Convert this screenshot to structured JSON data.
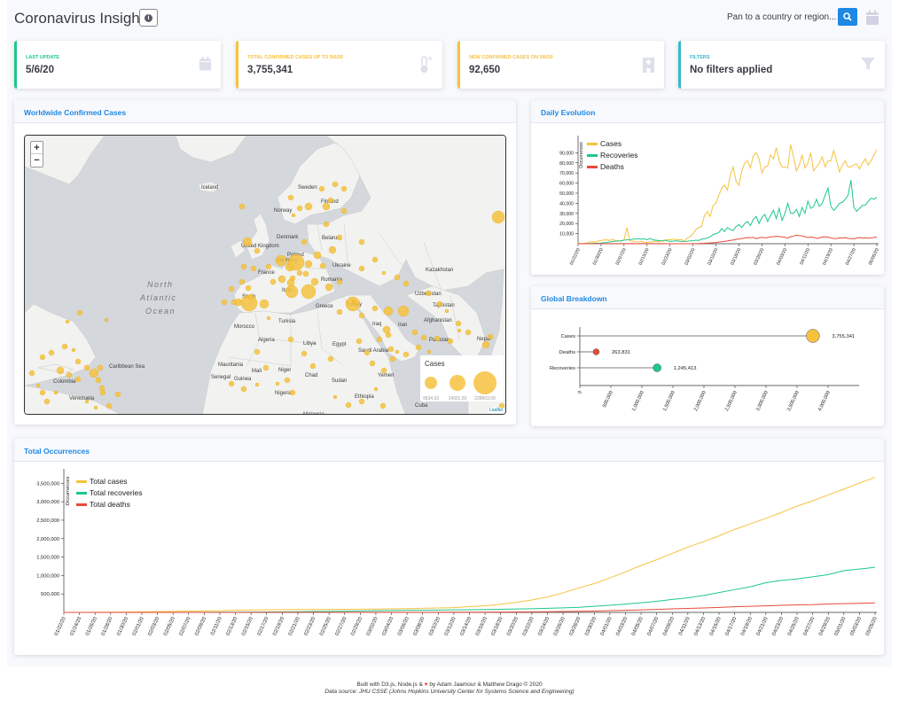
{
  "app": {
    "title": "Coronavirus Insights"
  },
  "search": {
    "placeholder": "Pan to a country or region..."
  },
  "kpis": [
    {
      "label": "LAST UPDATE",
      "value": "5/6/20",
      "color": "#1cc88a",
      "icon": "calendar-icon"
    },
    {
      "label": "TOTAL CONFIRMED CASES UP TO 5/6/20",
      "value": "3,755,341",
      "color": "#f6c23e",
      "icon": "thermometer-icon"
    },
    {
      "label": "NEW CONFIRMED CASES ON 5/6/20",
      "value": "92,650",
      "color": "#f6c23e",
      "icon": "hospital-icon"
    },
    {
      "label": "FILTERS",
      "value": "No filters applied",
      "color": "#36b9cc",
      "icon": "filter-icon"
    }
  ],
  "map_panel": {
    "title": "Worldwide Confirmed Cases",
    "zoom_in": "+",
    "zoom_out": "−",
    "legend_title": "Cases",
    "legend_values": [
      "9534.33",
      "14301.50",
      "228603.00"
    ],
    "attribution": "Leaflet",
    "labels": [
      "Iceland",
      "Sweden",
      "Finland",
      "Norway",
      "United Kingdom",
      "Denmark",
      "Belarus",
      "France",
      "Germany",
      "Poland",
      "Ukraine",
      "Kazakhstan",
      "Spain",
      "Italy",
      "Romania",
      "Uzbekistan",
      "Turkey",
      "Greece",
      "Tajikistan",
      "Tunisia",
      "Afghanistan",
      "Morocco",
      "Iraq",
      "Iran",
      "Algeria",
      "Libya",
      "Egypt",
      "Pakistan",
      "Nepal",
      "Saudi Arabia",
      "Mauritania",
      "Mali",
      "Niger",
      "Chad",
      "Sudan",
      "Yemen",
      "Oman",
      "Senegal",
      "Guinea",
      "Nigeria",
      "Ethiopia",
      "Venezuela",
      "Colombia",
      "Caribbean Sea",
      "Cuba",
      "Malaysia",
      "Democratic",
      "North Atlantic Ocean"
    ]
  },
  "daily_panel": {
    "title": "Daily Evolution",
    "ylabel": "Occurrences"
  },
  "breakdown_panel": {
    "title": "Global Breakdown"
  },
  "total_panel": {
    "title": "Total Occurrences",
    "ylabel": "Occurrences"
  },
  "footer": {
    "line1_before": "Built with D3.js, Node.js &",
    "line1_after": "by Adam Jaamour & Matthew Drago © 2020",
    "line2": "Data source: JHU CSSE (Johns Hopkins University Center for Systems Science and Engineering)"
  },
  "chart_data": [
    {
      "type": "line",
      "title": "Daily Evolution",
      "ylabel": "Occurrences",
      "ylim": [
        0,
        100000
      ],
      "yticks": [
        "10,000",
        "20,000",
        "30,000",
        "40,000",
        "50,000",
        "60,000",
        "70,000",
        "80,000",
        "90,000"
      ],
      "xticks": [
        "01/22/20",
        "01/30/20",
        "02/07/20",
        "02/15/20",
        "02/23/20",
        "03/02/20",
        "03/10/20",
        "03/18/20",
        "03/26/20",
        "04/03/20",
        "04/11/20",
        "04/19/20",
        "04/27/20",
        "05/05/20"
      ],
      "legend": "top-left",
      "series": [
        {
          "name": "Cases",
          "color": "#f6c23e",
          "values": [
            500,
            100,
            300,
            700,
            1800,
            2000,
            1700,
            2700,
            3200,
            3700,
            3800,
            3300,
            4100,
            3200,
            2700,
            2500,
            3700,
            16000,
            3000,
            2600,
            2000,
            1800,
            2500,
            1500,
            1100,
            1700,
            2000,
            2600,
            2000,
            2500,
            2800,
            4000,
            3800,
            4500,
            4300,
            4000,
            4200,
            2400,
            5500,
            7000,
            9800,
            14000,
            16000,
            17000,
            28000,
            32000,
            27000,
            38000,
            40000,
            48000,
            55000,
            58000,
            53000,
            68000,
            76000,
            62000,
            58000,
            72000,
            80000,
            82000,
            75000,
            87000,
            90000,
            84000,
            70000,
            76000,
            77000,
            88000,
            84000,
            95000,
            82000,
            76000,
            76000,
            75000,
            98000,
            86000,
            72000,
            78000,
            88000,
            75000,
            80000,
            90000,
            72000,
            76000,
            80000,
            86000,
            76000,
            82000,
            82000,
            92000,
            82000,
            71000,
            78000,
            82000,
            76000,
            76000,
            78000,
            79000,
            74000,
            80000,
            84000,
            78000,
            82000,
            88000,
            93000
          ]
        },
        {
          "name": "Recoveries",
          "color": "#1cc88a",
          "values": [
            0,
            0,
            0,
            100,
            200,
            300,
            400,
            500,
            700,
            1000,
            1200,
            1700,
            2200,
            2500,
            2800,
            3000,
            3500,
            3800,
            4000,
            4500,
            4600,
            5000,
            4500,
            4800,
            4000,
            5200,
            3800,
            3500,
            3200,
            2800,
            3500,
            2900,
            2300,
            2500,
            2800,
            2600,
            2200,
            2300,
            2400,
            2900,
            2800,
            3500,
            3200,
            4500,
            5000,
            5500,
            7000,
            9000,
            10000,
            11000,
            15000,
            12000,
            16000,
            14000,
            13000,
            17000,
            19000,
            16000,
            20000,
            22000,
            18000,
            24000,
            27000,
            20000,
            26000,
            29000,
            22000,
            28000,
            33000,
            25000,
            35000,
            23000,
            30000,
            40000,
            30000,
            30000,
            34000,
            27000,
            36000,
            30000,
            42000,
            35000,
            37000,
            44000,
            37000,
            40000,
            48000,
            55000,
            37000,
            33000,
            36000,
            40000,
            41000,
            44000,
            48000,
            63000,
            36000,
            32000,
            35000,
            38000,
            38000,
            42000,
            45000,
            44000,
            46000
          ]
        },
        {
          "name": "Deaths",
          "color": "#e74a3b",
          "values": [
            17,
            8,
            16,
            14,
            26,
            26,
            38,
            43,
            46,
            45,
            57,
            64,
            66,
            73,
            86,
            89,
            97,
            108,
            97,
            254,
            13,
            143,
            142,
            106,
            98,
            139,
            112,
            99,
            108,
            150,
            71,
            52,
            29,
            44,
            47,
            35,
            42,
            31,
            38,
            52,
            76,
            100,
            200,
            320,
            450,
            650,
            800,
            1000,
            1200,
            1600,
            2000,
            2400,
            2700,
            3300,
            3600,
            4300,
            4600,
            5200,
            5600,
            6100,
            5900,
            6200,
            5000,
            5800,
            6300,
            5800,
            6100,
            6800,
            7000,
            7300,
            7200,
            6700,
            6500,
            5500,
            7000,
            7500,
            8500,
            8000,
            7800,
            6800,
            6200,
            6700,
            6300,
            5300,
            5600,
            6700,
            6800,
            6600,
            5700,
            5200,
            5100,
            5800,
            5600,
            6000,
            5300,
            5100,
            4800,
            5600,
            6100,
            5500,
            5800,
            5500,
            5600,
            6300,
            6400
          ]
        }
      ]
    },
    {
      "type": "scatter",
      "title": "Global Breakdown",
      "categories": [
        "Cases",
        "Deaths",
        "Recoveries"
      ],
      "values": [
        3755341,
        263831,
        1245413
      ],
      "value_labels": [
        "3,755,341",
        "263,831",
        "1,245,413"
      ],
      "colors": [
        "#f6c23e",
        "#e74a3b",
        "#1cc88a"
      ],
      "xlim": [
        0,
        4500000
      ],
      "xticks": [
        "0",
        "500,000",
        "1,000,000",
        "1,500,000",
        "2,000,000",
        "2,500,000",
        "3,000,000",
        "3,500,000",
        "4,000,000"
      ]
    },
    {
      "type": "line",
      "title": "Total Occurrences",
      "ylabel": "Occurrences",
      "ylim": [
        0,
        3700000
      ],
      "yticks": [
        "500,000",
        "1,000,000",
        "1,500,000",
        "2,000,000",
        "2,500,000",
        "3,000,000",
        "3,500,000"
      ],
      "xticks": [
        "01/22/20",
        "01/24/20",
        "01/26/20",
        "01/28/20",
        "01/30/20",
        "02/01/20",
        "02/03/20",
        "02/05/20",
        "02/07/20",
        "02/09/20",
        "02/11/20",
        "02/13/20",
        "02/15/20",
        "02/17/20",
        "02/19/20",
        "02/21/20",
        "02/23/20",
        "02/25/20",
        "02/27/20",
        "02/29/20",
        "03/02/20",
        "03/04/20",
        "03/06/20",
        "03/08/20",
        "03/10/20",
        "03/12/20",
        "03/14/20",
        "03/16/20",
        "03/18/20",
        "03/20/20",
        "03/22/20",
        "03/24/20",
        "03/26/20",
        "03/28/20",
        "03/30/20",
        "04/01/20",
        "04/03/20",
        "04/05/20",
        "04/07/20",
        "04/09/20",
        "04/11/20",
        "04/13/20",
        "04/15/20",
        "04/17/20",
        "04/19/20",
        "04/21/20",
        "04/23/20",
        "04/25/20",
        "04/27/20",
        "04/29/20",
        "05/01/20",
        "05/03/20",
        "05/05/20"
      ],
      "legend": "top-left",
      "series": [
        {
          "name": "Total cases",
          "color": "#f6c23e",
          "values": [
            555,
            941,
            2118,
            5578,
            9927,
            14557,
            20635,
            28272,
            34939,
            40559,
            45202,
            60384,
            67100,
            71226,
            75152,
            76841,
            79356,
            80420,
            82756,
            86012,
            90306,
            95120,
            101800,
            109800,
            118582,
            128000,
            156000,
            181000,
            218000,
            272000,
            336000,
            418000,
            530000,
            662000,
            781000,
            932000,
            1097000,
            1273000,
            1426000,
            1599000,
            1771000,
            1917000,
            2075000,
            2250000,
            2401000,
            2549000,
            2709000,
            2881000,
            3024000,
            3185000,
            3343000,
            3506000,
            3662000
          ]
        },
        {
          "name": "Total recoveries",
          "color": "#1cc88a",
          "values": [
            28,
            36,
            52,
            107,
            124,
            222,
            623,
            1124,
            2011,
            3244,
            5150,
            6295,
            8058,
            12583,
            16121,
            18890,
            22886,
            27905,
            33277,
            39782,
            45602,
            51171,
            55866,
            60694,
            64404,
            68324,
            72624,
            78088,
            84975,
            91692,
            98334,
            112000,
            124000,
            139000,
            165000,
            194000,
            226000,
            260000,
            300000,
            350000,
            396000,
            459000,
            538000,
            617000,
            694000,
            804000,
            867000,
            908000,
            963000,
            1025000,
            1133000,
            1175000,
            1222000
          ]
        },
        {
          "name": "Total deaths",
          "color": "#e74a3b",
          "values": [
            17,
            26,
            56,
            131,
            213,
            305,
            425,
            564,
            723,
            906,
            1112,
            1369,
            1523,
            1770,
            2122,
            2251,
            2462,
            2708,
            2801,
            2941,
            3085,
            3254,
            3460,
            3803,
            4262,
            4720,
            5819,
            7126,
            8733,
            11181,
            14611,
            18891,
            24063,
            30653,
            37582,
            46814,
            57716,
            67975,
            82007,
            95533,
            108600,
            119548,
            135600,
            153800,
            165000,
            176600,
            191300,
            202900,
            210000,
            226900,
            238000,
            247400,
            257200
          ]
        }
      ]
    }
  ]
}
